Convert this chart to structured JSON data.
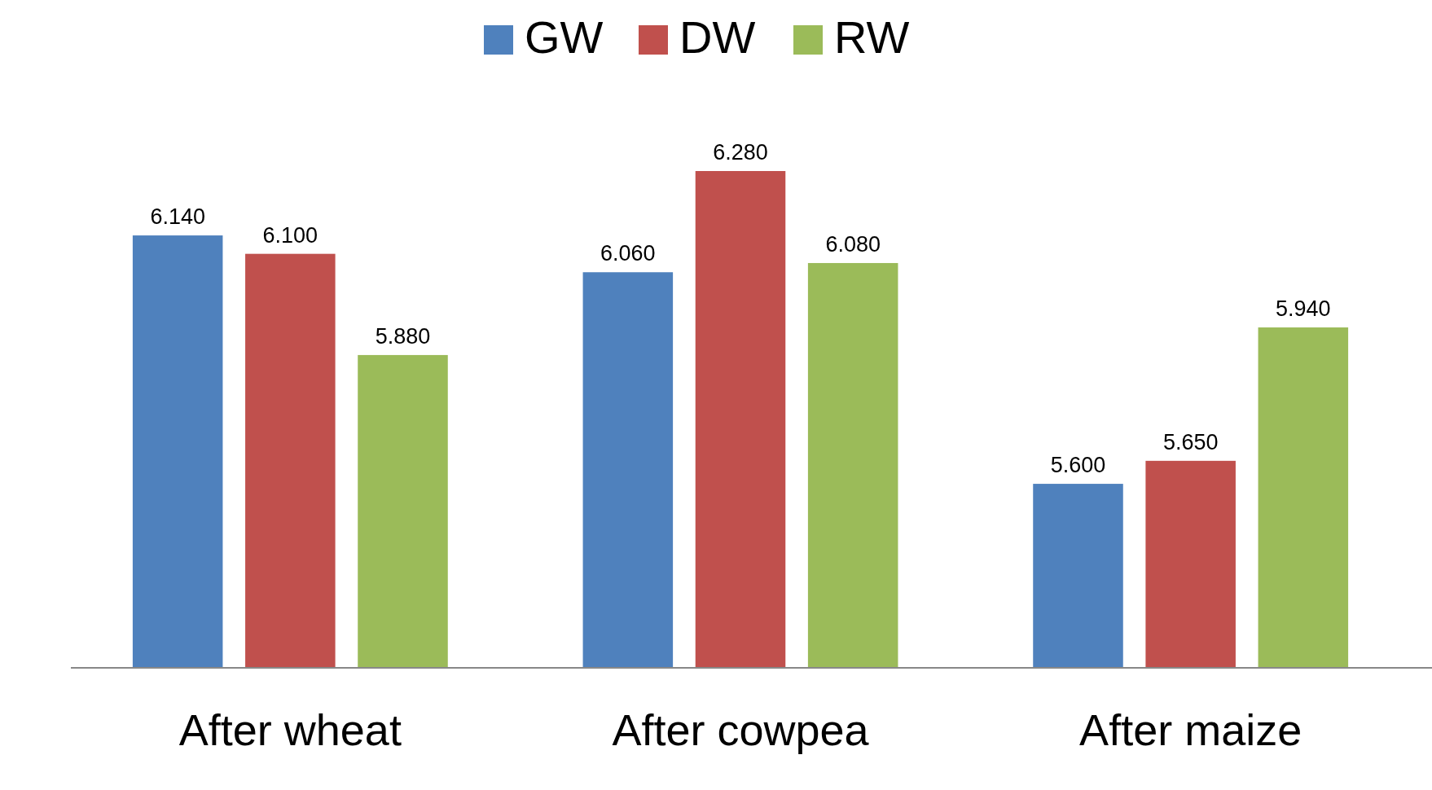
{
  "chart_data": {
    "type": "bar",
    "categories": [
      "After wheat",
      "After cowpea",
      "After maize"
    ],
    "series": [
      {
        "name": "GW",
        "color": "#4f81bd",
        "values": [
          6.14,
          6.06,
          5.6
        ],
        "value_labels": [
          "6.140",
          "6.060",
          "5.600"
        ]
      },
      {
        "name": "DW",
        "color": "#c0504d",
        "values": [
          6.1,
          6.28,
          5.65
        ],
        "value_labels": [
          "6.100",
          "6.280",
          "5.650"
        ]
      },
      {
        "name": "RW",
        "color": "#9bbb59",
        "values": [
          5.88,
          6.08,
          5.94
        ],
        "value_labels": [
          "5.880",
          "6.080",
          "5.940"
        ]
      }
    ],
    "ylim": [
      5.2,
      6.28
    ],
    "legend": "top"
  }
}
